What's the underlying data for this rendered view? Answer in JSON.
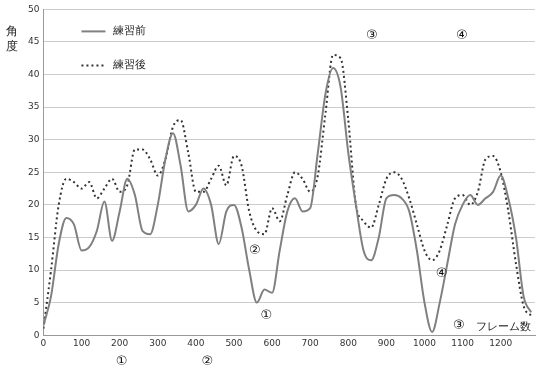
{
  "chart_data": {
    "type": "line",
    "x_label": "フレーム数",
    "y_label": "角度",
    "x": [
      0,
      20,
      40,
      60,
      80,
      100,
      120,
      140,
      160,
      180,
      200,
      220,
      240,
      260,
      280,
      300,
      320,
      340,
      360,
      380,
      400,
      420,
      440,
      460,
      480,
      500,
      520,
      540,
      560,
      580,
      600,
      620,
      640,
      660,
      680,
      700,
      720,
      740,
      760,
      780,
      800,
      820,
      840,
      860,
      880,
      900,
      920,
      940,
      960,
      980,
      1000,
      1020,
      1040,
      1060,
      1080,
      1100,
      1120,
      1140,
      1160,
      1180,
      1200,
      1220,
      1240,
      1260,
      1280
    ],
    "series": [
      {
        "name": "練習前",
        "color": "#808080",
        "line_style": "solid",
        "values": [
          1.5,
          6,
          14,
          18,
          17,
          13,
          13.5,
          16,
          20.5,
          14.5,
          19,
          24,
          21.5,
          16,
          15.5,
          20,
          27,
          31,
          26,
          19,
          20,
          22.5,
          20,
          14,
          19,
          20,
          16.5,
          10,
          5,
          7,
          6.5,
          13,
          19,
          21,
          19,
          19.5,
          28,
          37,
          41,
          38,
          28,
          20,
          13,
          11.5,
          15,
          21,
          21.5,
          21,
          19,
          13,
          5,
          0.5,
          5,
          11,
          17,
          20,
          21.5,
          20,
          21,
          22,
          24.5,
          21,
          15,
          6,
          3.5
        ]
      },
      {
        "name": "練習後",
        "color": "#333333",
        "line_style": "dotted",
        "values": [
          1,
          10,
          20,
          24,
          23.5,
          22.5,
          23.5,
          21,
          22.5,
          24,
          22,
          23,
          28.5,
          28.5,
          27,
          24.5,
          27,
          32,
          33,
          28,
          22,
          22,
          24,
          26,
          23,
          27.5,
          26,
          19,
          16,
          15.5,
          19.5,
          17.5,
          21.5,
          25,
          24,
          22,
          24.5,
          34,
          43,
          42.5,
          33,
          20,
          17.5,
          16.5,
          20,
          24,
          25,
          24,
          21,
          17,
          13,
          11.5,
          13,
          17,
          21,
          21.5,
          20,
          22,
          27,
          27.5,
          25,
          19,
          11,
          4.5,
          3
        ]
      }
    ],
    "xlim": [
      0,
      1290
    ],
    "xticks": [
      0,
      100,
      200,
      300,
      400,
      500,
      600,
      700,
      800,
      900,
      1000,
      1100,
      1200
    ],
    "ylim": [
      0,
      50
    ],
    "yticks": [
      0,
      5,
      10,
      15,
      20,
      25,
      30,
      35,
      40,
      45,
      50
    ],
    "grid": "y",
    "legend": "upper left",
    "annotations": [
      {
        "text": "①",
        "x": 585,
        "y": 3
      },
      {
        "text": "②",
        "x": 555,
        "y": 13
      },
      {
        "text": "③",
        "x": 1090,
        "y": 1.5
      },
      {
        "text": "④",
        "x": 1045,
        "y": 9.5
      },
      {
        "text": "①",
        "x": 205,
        "y": -4
      },
      {
        "text": "②",
        "x": 430,
        "y": -4
      },
      {
        "text": "③",
        "x": 862,
        "y": 46
      },
      {
        "text": "④",
        "x": 1098,
        "y": 46
      }
    ]
  }
}
